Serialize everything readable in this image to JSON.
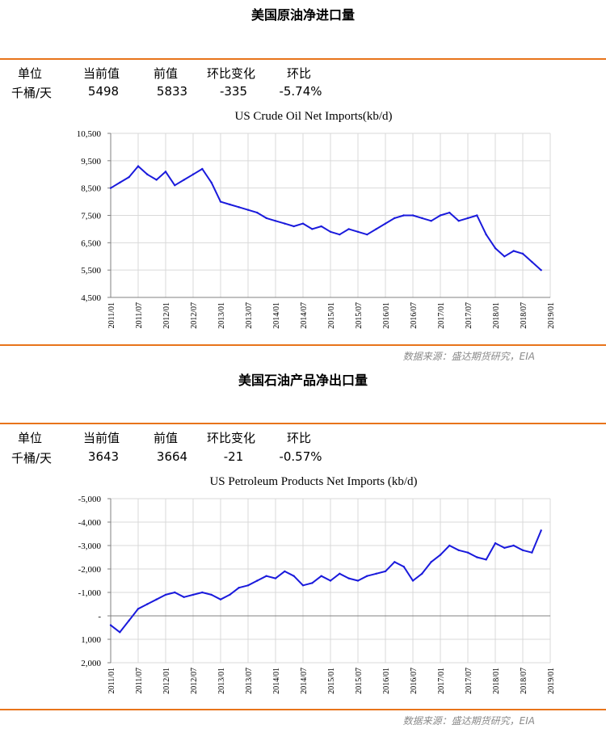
{
  "crude": {
    "section_title": "美国原油净进口量",
    "headers": [
      "单位",
      "当前值",
      "前值",
      "环比变化",
      "环比"
    ],
    "values": [
      "千桶/天",
      "5498",
      "5833",
      "-335",
      "-5.74%"
    ],
    "source": "数据来源：盛达期货研究，EIA"
  },
  "products": {
    "section_title": "美国石油产品净出口量",
    "headers": [
      "单位",
      "当前值",
      "前值",
      "环比变化",
      "环比"
    ],
    "values": [
      "千桶/天",
      "3643",
      "3664",
      "-21",
      "-0.57%"
    ],
    "source": "数据来源：盛达期货研究，EIA"
  },
  "chart_data": [
    {
      "type": "line",
      "title": "US Crude Oil Net Imports(kb/d)",
      "xlabel": "",
      "ylabel": "",
      "x_range": [
        "2011/01",
        "2019/01"
      ],
      "ylim": [
        4500,
        10500
      ],
      "y_ticks": [
        "10,500",
        "9,500",
        "8,500",
        "7,500",
        "6,500",
        "5,500",
        "4,500"
      ],
      "y_tick_values": [
        10500,
        9500,
        8500,
        7500,
        6500,
        5500,
        4500
      ],
      "x_ticks": [
        "2011/01",
        "2011/07",
        "2012/01",
        "2012/07",
        "2013/01",
        "2013/07",
        "2014/01",
        "2014/07",
        "2015/01",
        "2015/07",
        "2016/01",
        "2016/07",
        "2017/01",
        "2017/07",
        "2018/01",
        "2018/07",
        "2019/01"
      ],
      "grid": true,
      "line_color": "#1a1adc",
      "series": [
        {
          "x": [
            "2011/01",
            "2011/03",
            "2011/05",
            "2011/07",
            "2011/09",
            "2011/11",
            "2012/01",
            "2012/03",
            "2012/05",
            "2012/07",
            "2012/09",
            "2012/11",
            "2013/01",
            "2013/03",
            "2013/05",
            "2013/07",
            "2013/09",
            "2013/11",
            "2014/01",
            "2014/03",
            "2014/05",
            "2014/07",
            "2014/09",
            "2014/11",
            "2015/01",
            "2015/03",
            "2015/05",
            "2015/07",
            "2015/09",
            "2015/11",
            "2016/01",
            "2016/03",
            "2016/05",
            "2016/07",
            "2016/09",
            "2016/11",
            "2017/01",
            "2017/03",
            "2017/05",
            "2017/07",
            "2017/09",
            "2017/11",
            "2018/01",
            "2018/03",
            "2018/05",
            "2018/07",
            "2018/09",
            "2018/11"
          ],
          "values": [
            8500,
            8700,
            8900,
            9300,
            9000,
            8800,
            9100,
            8600,
            8800,
            9000,
            9200,
            8700,
            8000,
            7900,
            7800,
            7700,
            7600,
            7400,
            7300,
            7200,
            7100,
            7200,
            7000,
            7100,
            6900,
            6800,
            7000,
            6900,
            6800,
            7000,
            7200,
            7400,
            7500,
            7500,
            7400,
            7300,
            7500,
            7600,
            7300,
            7400,
            7500,
            6800,
            6300,
            6000,
            6200,
            6100,
            5800,
            5498
          ]
        }
      ]
    },
    {
      "type": "line",
      "title": "US Petroleum Products Net Imports (kb/d)",
      "xlabel": "",
      "ylabel": "",
      "x_range": [
        "2011/01",
        "2019/01"
      ],
      "ylim": [
        -5000,
        2000
      ],
      "y_reversed": true,
      "y_ticks": [
        "-5,000",
        "-4,000",
        "-3,000",
        "-2,000",
        "-1,000",
        "-",
        "1,000",
        "2,000"
      ],
      "y_tick_values": [
        -5000,
        -4000,
        -3000,
        -2000,
        -1000,
        0,
        1000,
        2000
      ],
      "x_ticks": [
        "2011/01",
        "2011/07",
        "2012/01",
        "2012/07",
        "2013/01",
        "2013/07",
        "2014/01",
        "2014/07",
        "2015/01",
        "2015/07",
        "2016/01",
        "2016/07",
        "2017/01",
        "2017/07",
        "2018/01",
        "2018/07",
        "2019/01"
      ],
      "grid": true,
      "line_color": "#1a1adc",
      "series": [
        {
          "x": [
            "2011/01",
            "2011/03",
            "2011/05",
            "2011/07",
            "2011/09",
            "2011/11",
            "2012/01",
            "2012/03",
            "2012/05",
            "2012/07",
            "2012/09",
            "2012/11",
            "2013/01",
            "2013/03",
            "2013/05",
            "2013/07",
            "2013/09",
            "2013/11",
            "2014/01",
            "2014/03",
            "2014/05",
            "2014/07",
            "2014/09",
            "2014/11",
            "2015/01",
            "2015/03",
            "2015/05",
            "2015/07",
            "2015/09",
            "2015/11",
            "2016/01",
            "2016/03",
            "2016/05",
            "2016/07",
            "2016/09",
            "2016/11",
            "2017/01",
            "2017/03",
            "2017/05",
            "2017/07",
            "2017/09",
            "2017/11",
            "2018/01",
            "2018/03",
            "2018/05",
            "2018/07",
            "2018/09",
            "2018/11"
          ],
          "values": [
            400,
            700,
            200,
            -300,
            -500,
            -700,
            -900,
            -1000,
            -800,
            -900,
            -1000,
            -900,
            -700,
            -900,
            -1200,
            -1300,
            -1500,
            -1700,
            -1600,
            -1900,
            -1700,
            -1300,
            -1400,
            -1700,
            -1500,
            -1800,
            -1600,
            -1500,
            -1700,
            -1800,
            -1900,
            -2300,
            -2100,
            -1500,
            -1800,
            -2300,
            -2600,
            -3000,
            -2800,
            -2700,
            -2500,
            -2400,
            -3100,
            -2900,
            -3000,
            -2800,
            -2700,
            -3643
          ]
        }
      ]
    }
  ]
}
